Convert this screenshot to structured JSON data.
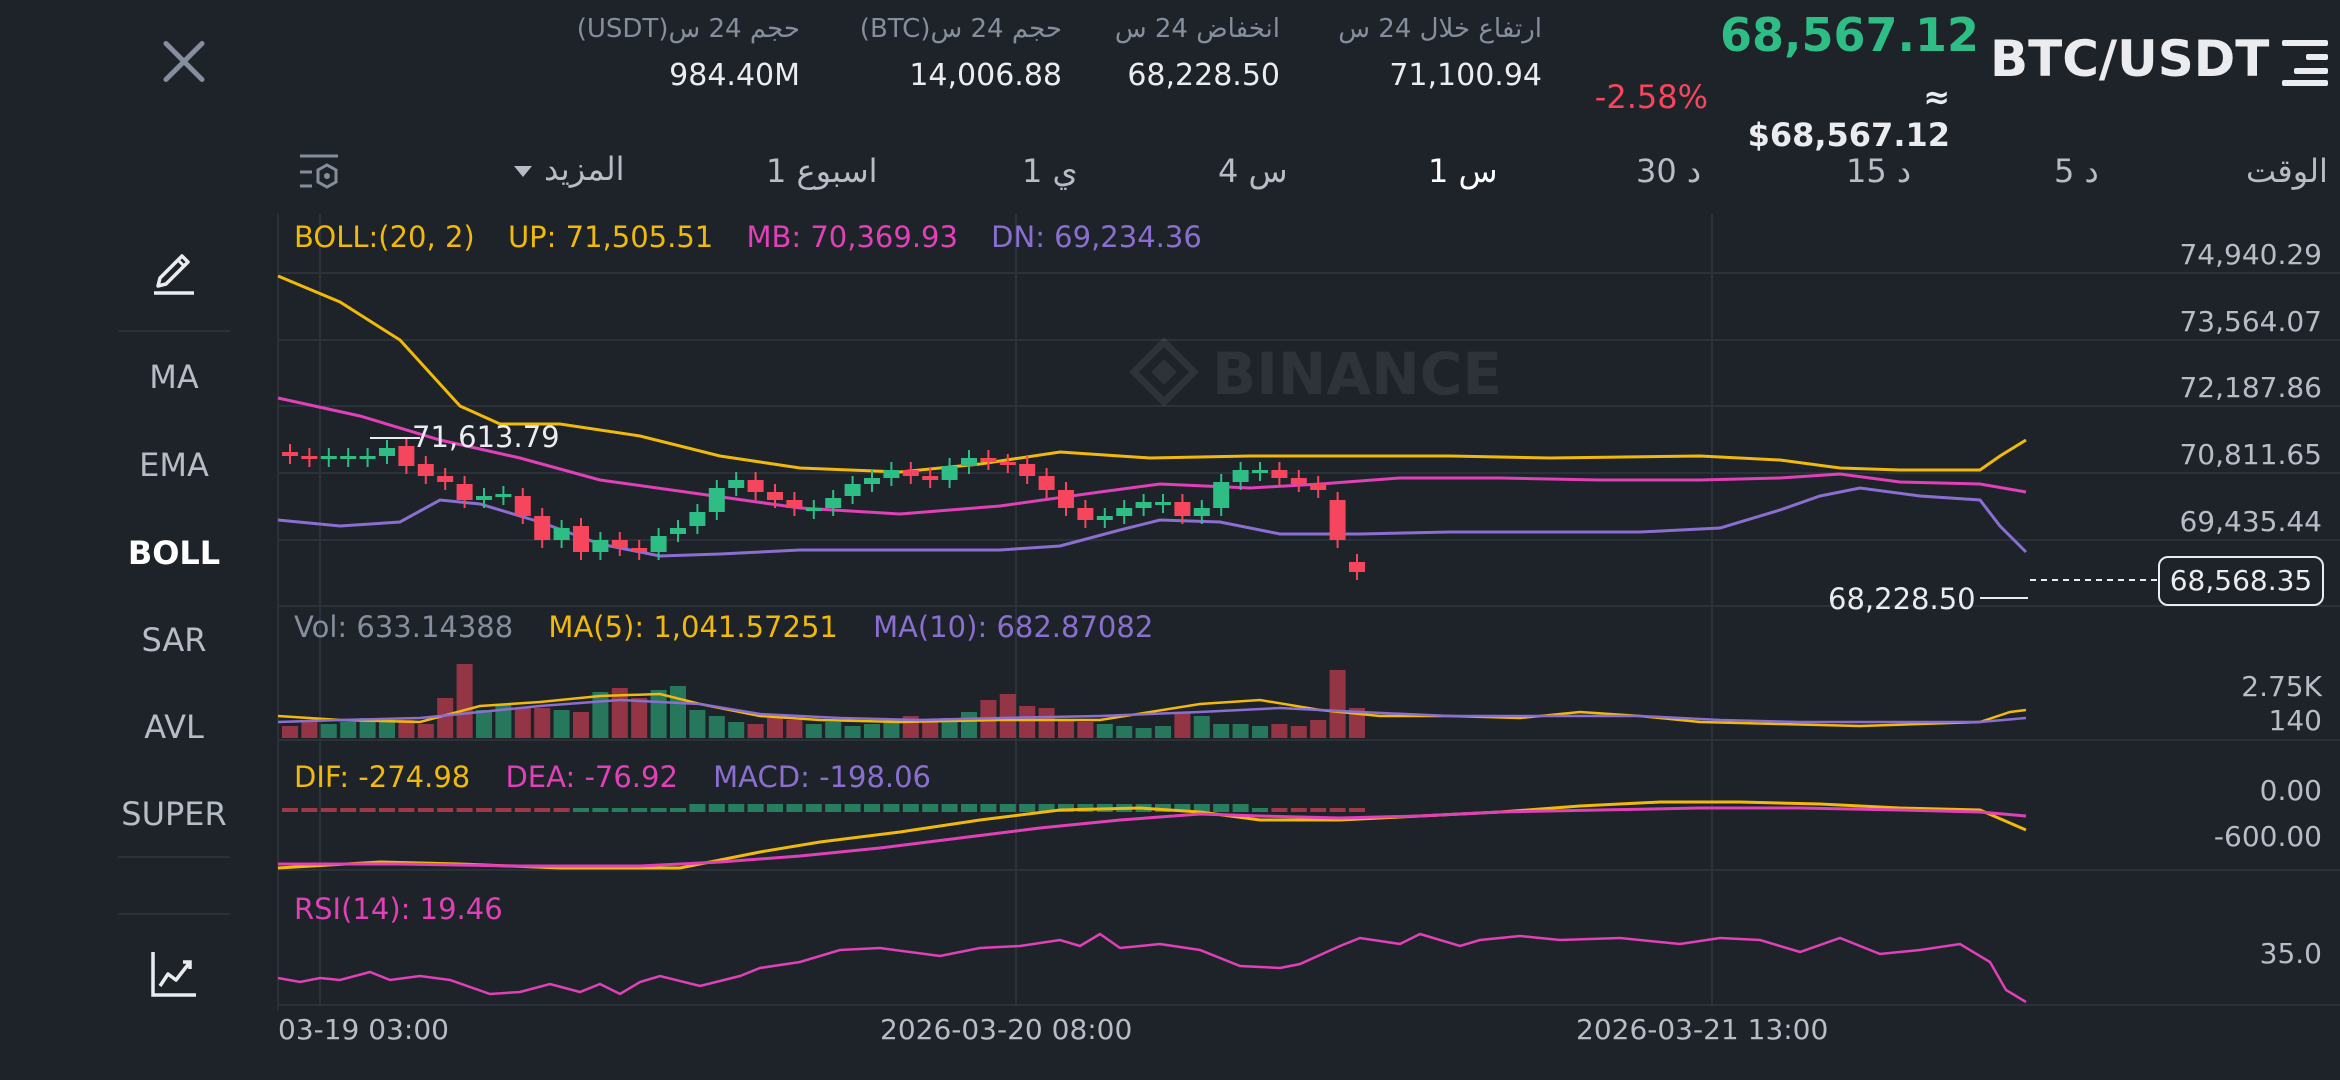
{
  "header": {
    "pair": "BTC/USDT",
    "last_price": "68,567.12",
    "approx_price": "≈ $68,567.12",
    "change_pct": "-2.58%",
    "stats": [
      {
        "label": "ارتفاع خلال 24 س",
        "value": "71,100.94"
      },
      {
        "label": "انخفاض 24 س",
        "value": "68,228.50"
      },
      {
        "label": "حجم 24 س(BTC)",
        "value": "14,006.88"
      },
      {
        "label": "حجم 24 س(USDT)",
        "value": "984.40M"
      }
    ]
  },
  "timeframes": {
    "label": "الوقت",
    "items": [
      "5 د",
      "15 د",
      "30 د",
      "1 س",
      "4 س",
      "1 ي",
      "1 اسبوع"
    ],
    "active": "1 س",
    "more": "المزيد"
  },
  "tools": [
    "MA",
    "EMA",
    "BOLL",
    "SAR",
    "AVL",
    "SUPER"
  ],
  "active_tool": "BOLL",
  "indicators": {
    "boll": {
      "name": "BOLL:(20, 2)",
      "up": "UP: 71,505.51",
      "mb": "MB: 70,369.93",
      "dn": "DN: 69,234.36"
    },
    "vol": {
      "vol": "Vol: 633.14388",
      "ma5": "MA(5): 1,041.57251",
      "ma10": "MA(10): 682.87082"
    },
    "macd": {
      "dif": "DIF: -274.98",
      "dea": "DEA: -76.92",
      "macd": "MACD: -198.06"
    },
    "rsi": {
      "label": "RSI(14): 19.46"
    }
  },
  "price_axis": [
    "74,940.29",
    "73,564.07",
    "72,187.86",
    "70,811.65",
    "69,435.44"
  ],
  "current_price_tag": "68,568.35",
  "high_marker": "71,613.79",
  "low_marker": "68,228.50",
  "vol_axis": [
    "2.75K",
    "140"
  ],
  "macd_axis": [
    "0.00",
    "-600.00"
  ],
  "rsi_axis": [
    "35.0"
  ],
  "x_axis": [
    "03-19 03:00",
    "2026-03-20 08:00",
    "2026-03-21 13:00"
  ],
  "watermark": "BINANCE",
  "colors": {
    "up": "#2ebd85",
    "down": "#f6465d",
    "boll_up": "#f0b90b",
    "boll_mb": "#e040b8",
    "boll_dn": "#8a6fd0",
    "bg": "#1e2329"
  }
}
